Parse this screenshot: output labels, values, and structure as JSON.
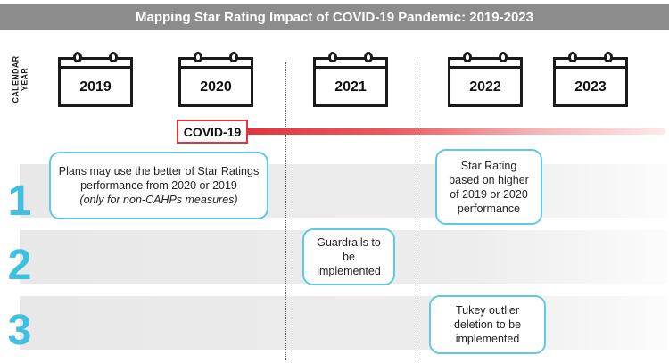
{
  "title": "Mapping Star Rating Impact of COVID-19 Pandemic: 2019-2023",
  "axis_label": "CALENDAR\nYEAR",
  "years": [
    "2019",
    "2020",
    "2021",
    "2022",
    "2023"
  ],
  "covid_label": "COVID-19",
  "rows": [
    {
      "number": "1",
      "notes": [
        {
          "lines": [
            "Plans may use the better of Star Ratings",
            "performance from 2020 or 2019"
          ],
          "italic": "(only for non-CAHPs measures)"
        },
        {
          "lines": [
            "Star Rating",
            "based on higher",
            "of 2019 or 2020",
            "performance"
          ]
        }
      ]
    },
    {
      "number": "2",
      "notes": [
        {
          "lines": [
            "Guardrails to be",
            "implemented"
          ]
        }
      ]
    },
    {
      "number": "3",
      "notes": [
        {
          "lines": [
            "Tukey outlier",
            "deletion to be",
            "implemented"
          ]
        }
      ]
    }
  ]
}
